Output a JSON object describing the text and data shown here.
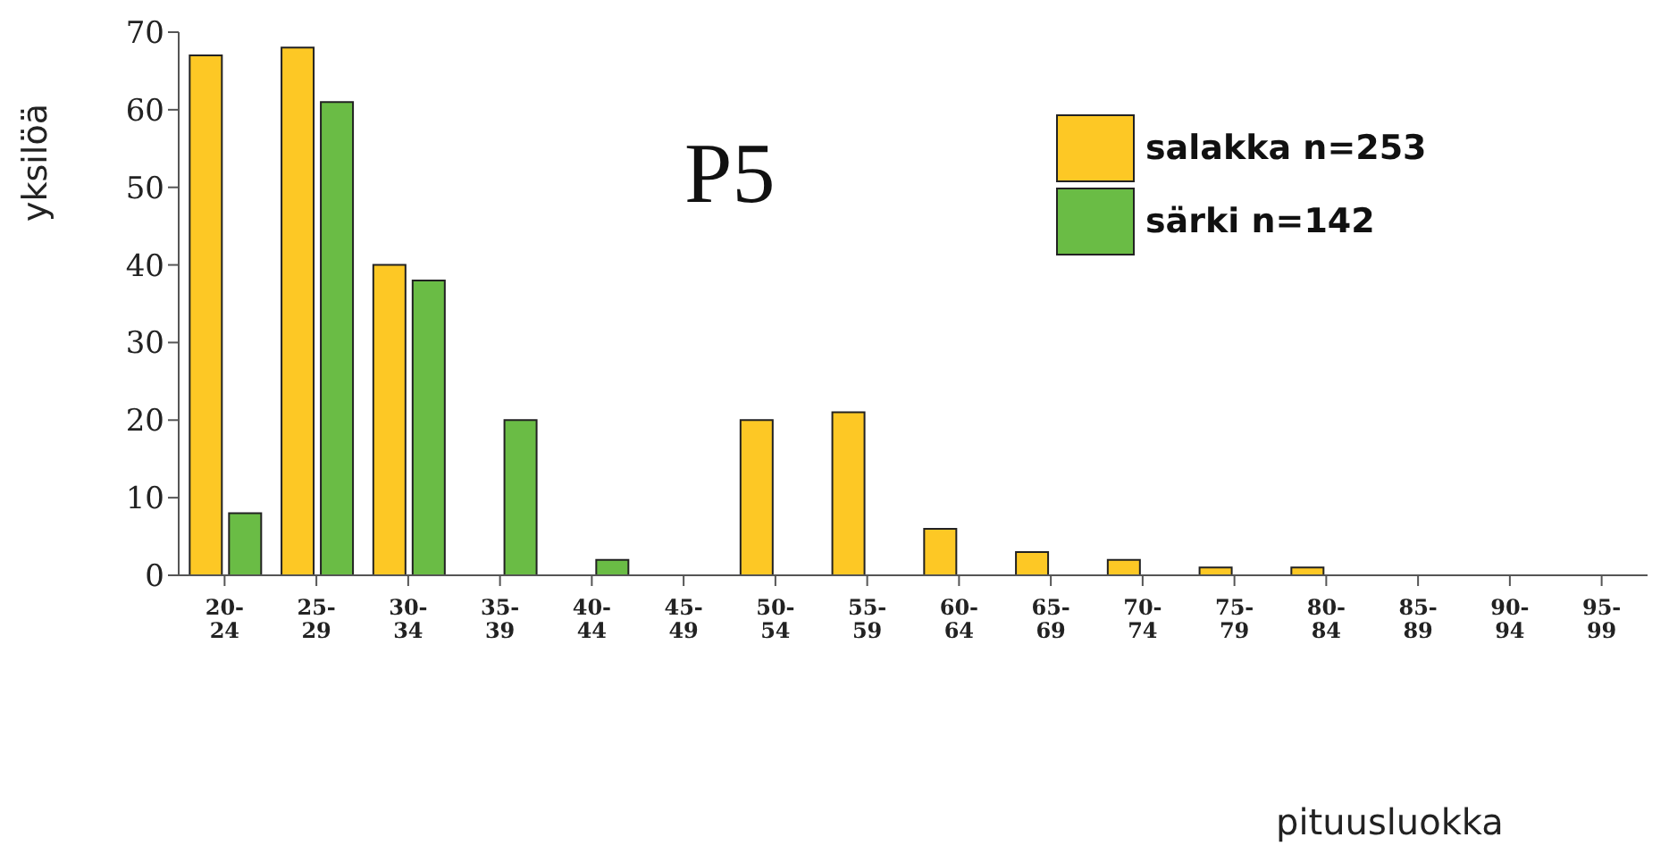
{
  "chart_data": {
    "type": "bar",
    "title": "P5",
    "xlabel": "pituusluokka",
    "ylabel": "yksilöä",
    "categories": [
      "20-24",
      "25-29",
      "30-34",
      "35-39",
      "40-44",
      "45-49",
      "50-54",
      "55-59",
      "60-64",
      "65-69",
      "70-74",
      "75-79",
      "80-84",
      "85-89",
      "90-94",
      "95-99"
    ],
    "series": [
      {
        "name": "salakka n=253",
        "color": "#fdc825",
        "values": [
          67,
          68,
          40,
          0,
          0,
          0,
          20,
          21,
          6,
          3,
          2,
          1,
          1,
          0,
          0,
          0
        ]
      },
      {
        "name": "särki n=142",
        "color": "#6abc45",
        "values": [
          8,
          61,
          38,
          20,
          2,
          0,
          0,
          0,
          0,
          0,
          0,
          0,
          0,
          0,
          0,
          0
        ]
      }
    ],
    "ylim": [
      0,
      70
    ],
    "yticks": [
      0,
      10,
      20,
      30,
      40,
      50,
      60,
      70
    ],
    "legend": "top right"
  }
}
